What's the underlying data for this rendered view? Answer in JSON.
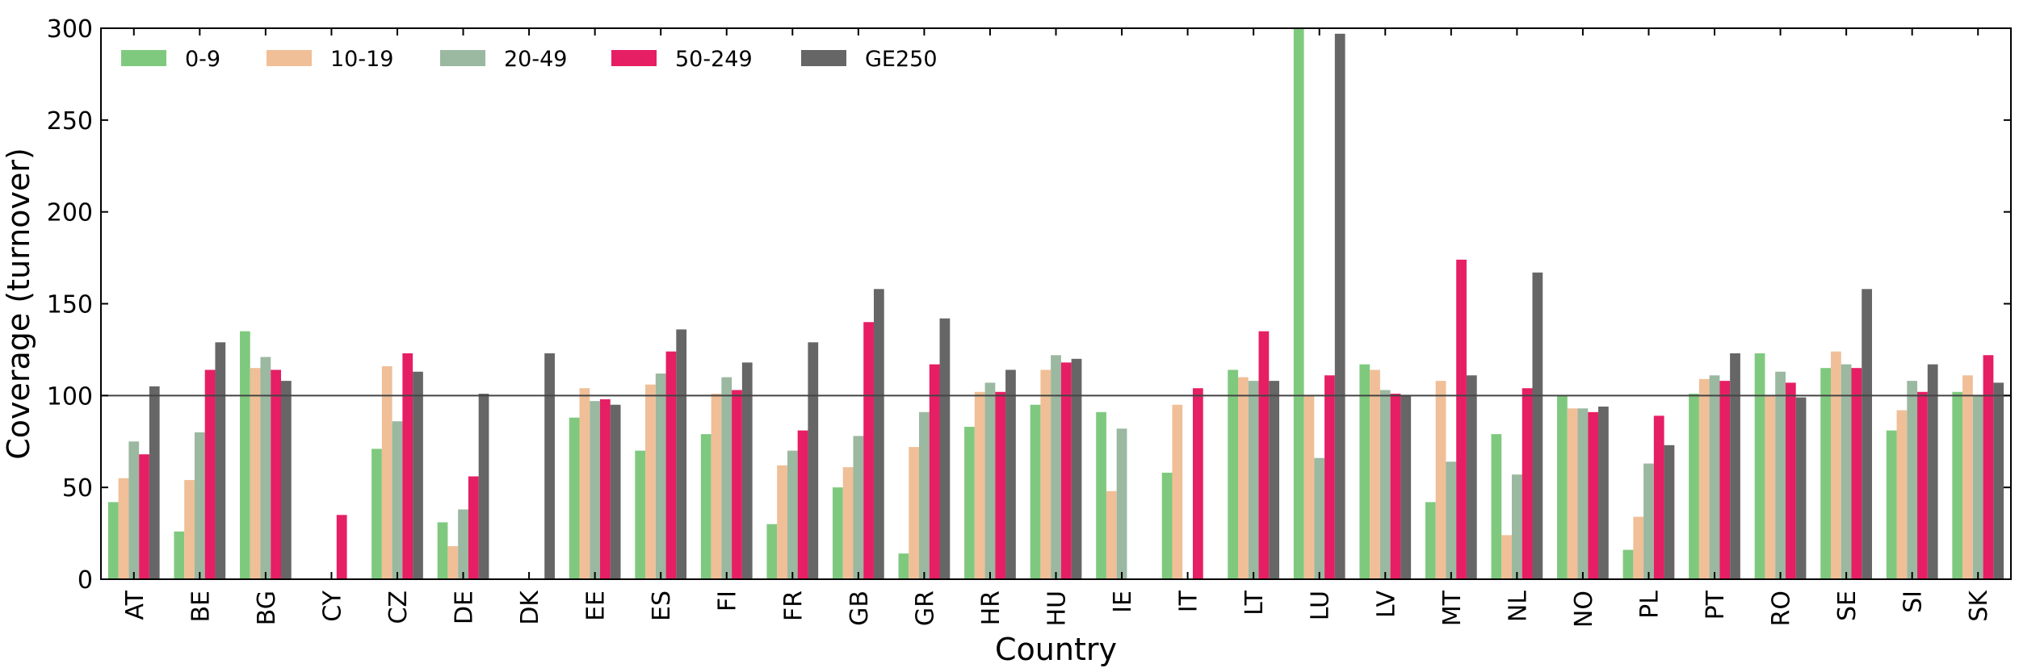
{
  "chart_data": {
    "type": "bar",
    "title": "",
    "xlabel": "Country",
    "ylabel": "Coverage (turnover)",
    "ylim": [
      0,
      300
    ],
    "yticks": [
      "0",
      "50",
      "100",
      "150",
      "200",
      "250",
      "300"
    ],
    "reference_line": 100,
    "grid": false,
    "legend_position": "top-left",
    "categories": [
      "AT",
      "BE",
      "BG",
      "CY",
      "CZ",
      "DE",
      "DK",
      "EE",
      "ES",
      "FI",
      "FR",
      "GB",
      "GR",
      "HR",
      "HU",
      "IE",
      "IT",
      "LT",
      "LU",
      "LV",
      "MT",
      "NL",
      "NO",
      "PL",
      "PT",
      "RO",
      "SE",
      "SI",
      "SK"
    ],
    "series": [
      {
        "name": "0-9",
        "color": "#7fc97f",
        "values": [
          42,
          26,
          135,
          null,
          71,
          31,
          null,
          88,
          70,
          79,
          30,
          50,
          14,
          83,
          95,
          91,
          58,
          114,
          300,
          117,
          42,
          79,
          100,
          16,
          101,
          123,
          115,
          81,
          102
        ]
      },
      {
        "name": "10-19",
        "color": "#f0bf97",
        "values": [
          55,
          54,
          115,
          null,
          116,
          18,
          null,
          104,
          106,
          101,
          62,
          61,
          72,
          102,
          114,
          48,
          95,
          110,
          100,
          114,
          108,
          24,
          93,
          34,
          109,
          100,
          124,
          92,
          111
        ]
      },
      {
        "name": "20-49",
        "color": "#9bb8a1",
        "values": [
          75,
          80,
          121,
          null,
          86,
          38,
          null,
          97,
          112,
          110,
          70,
          78,
          91,
          107,
          122,
          82,
          null,
          108,
          66,
          103,
          64,
          57,
          93,
          63,
          111,
          113,
          117,
          108,
          100
        ]
      },
      {
        "name": "50-249",
        "color": "#e61e64",
        "values": [
          68,
          114,
          114,
          35,
          123,
          56,
          null,
          98,
          124,
          103,
          81,
          140,
          117,
          102,
          118,
          null,
          104,
          135,
          111,
          101,
          174,
          104,
          91,
          89,
          108,
          107,
          115,
          102,
          122
        ]
      },
      {
        "name": "GE250",
        "color": "#666666",
        "values": [
          105,
          129,
          108,
          null,
          113,
          101,
          123,
          95,
          136,
          118,
          129,
          158,
          142,
          114,
          120,
          null,
          null,
          108,
          297,
          100,
          111,
          167,
          94,
          73,
          123,
          99,
          158,
          117,
          107
        ]
      }
    ]
  }
}
